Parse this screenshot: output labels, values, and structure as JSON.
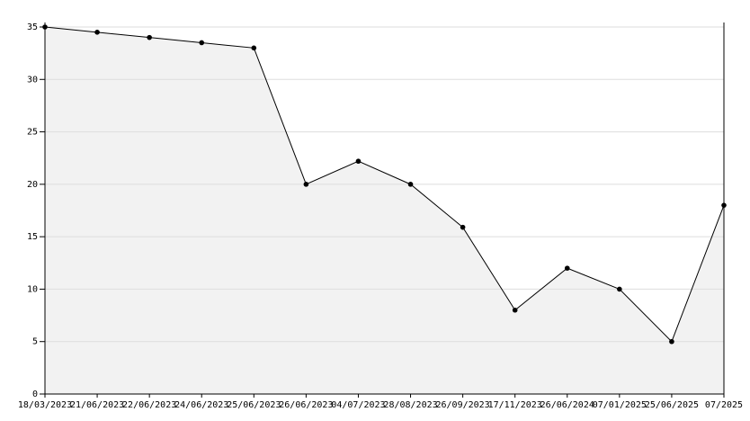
{
  "chart_data": {
    "type": "area",
    "categories": [
      "18/03/2023",
      "21/06/2023",
      "22/06/2023",
      "24/06/2023",
      "25/06/2023",
      "26/06/2023",
      "04/07/2023",
      "28/08/2023",
      "26/09/2023",
      "17/11/2023",
      "26/06/2024",
      "07/01/2025",
      "25/06/2025",
      "07/2025"
    ],
    "values": [
      35,
      34.5,
      34,
      33.5,
      33,
      20,
      22.2,
      20,
      15.9,
      8,
      12,
      10,
      5,
      18
    ],
    "color": "#000000",
    "fill": "#f2f2f2",
    "ylim": [
      0,
      35
    ],
    "yticks": [
      0,
      5,
      10,
      15,
      20,
      25,
      30,
      35
    ],
    "grid": true
  }
}
